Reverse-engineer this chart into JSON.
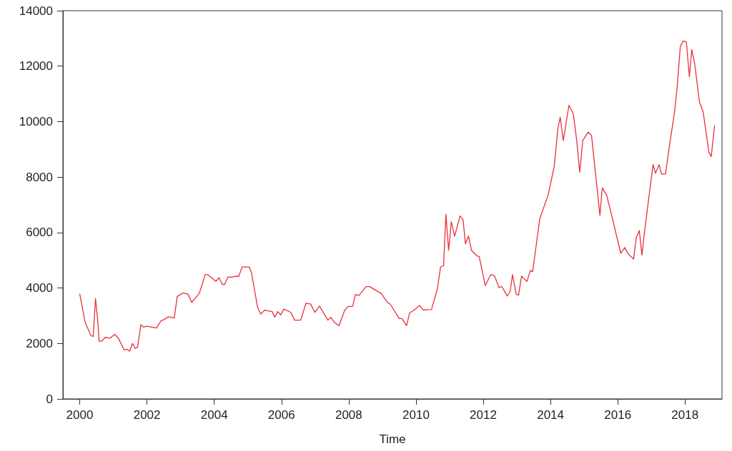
{
  "chart_data": {
    "type": "line",
    "xlabel": "Time",
    "x": [
      2000.0,
      2000.16,
      2000.33,
      2000.4,
      2000.47,
      2000.53,
      2000.58,
      2000.65,
      2000.76,
      2000.9,
      2001.04,
      2001.15,
      2001.32,
      2001.41,
      2001.48,
      2001.57,
      2001.65,
      2001.72,
      2001.82,
      2001.89,
      2002.0,
      2002.28,
      2002.42,
      2002.51,
      2002.63,
      2002.81,
      2002.9,
      2003.06,
      2003.22,
      2003.33,
      2003.45,
      2003.56,
      2003.73,
      2003.81,
      2004.05,
      2004.14,
      2004.24,
      2004.31,
      2004.41,
      2004.52,
      2004.63,
      2004.73,
      2004.83,
      2005.04,
      2005.11,
      2005.29,
      2005.38,
      2005.5,
      2005.72,
      2005.8,
      2005.89,
      2005.98,
      2006.07,
      2006.28,
      2006.39,
      2006.57,
      2006.73,
      2006.87,
      2006.99,
      2007.13,
      2007.38,
      2007.47,
      2007.56,
      2007.71,
      2007.88,
      2007.98,
      2008.12,
      2008.2,
      2008.3,
      2008.52,
      2008.62,
      2008.97,
      2009.15,
      2009.24,
      2009.5,
      2009.58,
      2009.72,
      2009.81,
      2009.93,
      2010.11,
      2010.21,
      2010.46,
      2010.64,
      2010.73,
      2010.82,
      2010.89,
      2010.97,
      2011.05,
      2011.15,
      2011.31,
      2011.4,
      2011.47,
      2011.56,
      2011.65,
      2011.81,
      2011.88,
      2012.06,
      2012.23,
      2012.34,
      2012.47,
      2012.55,
      2012.71,
      2012.8,
      2012.87,
      2012.98,
      2013.05,
      2013.14,
      2013.3,
      2013.4,
      2013.47,
      2013.68,
      2013.83,
      2013.93,
      2014.11,
      2014.22,
      2014.29,
      2014.38,
      2014.55,
      2014.68,
      2014.78,
      2014.87,
      2014.96,
      2015.12,
      2015.22,
      2015.47,
      2015.54,
      2015.67,
      2015.81,
      2016.09,
      2016.21,
      2016.3,
      2016.47,
      2016.55,
      2016.64,
      2016.72,
      2016.8,
      2017.05,
      2017.12,
      2017.23,
      2017.3,
      2017.42,
      2017.55,
      2017.69,
      2017.77,
      2017.86,
      2017.95,
      2018.04,
      2018.13,
      2018.2,
      2018.29,
      2018.43,
      2018.54,
      2018.71,
      2018.78,
      2018.88
    ],
    "series": [
      {
        "color": "#e8303a",
        "values": [
          3790,
          2760,
          2290,
          2250,
          3620,
          2890,
          2080,
          2080,
          2220,
          2190,
          2330,
          2190,
          1770,
          1790,
          1720,
          2000,
          1820,
          1870,
          2680,
          2590,
          2620,
          2560,
          2820,
          2860,
          2960,
          2920,
          3690,
          3820,
          3780,
          3480,
          3650,
          3820,
          4480,
          4480,
          4240,
          4370,
          4130,
          4130,
          4400,
          4390,
          4420,
          4420,
          4760,
          4760,
          4540,
          3300,
          3060,
          3200,
          3150,
          2950,
          3150,
          3030,
          3240,
          3120,
          2840,
          2840,
          3450,
          3420,
          3120,
          3350,
          2840,
          2940,
          2780,
          2640,
          3200,
          3330,
          3340,
          3770,
          3730,
          4050,
          4050,
          3800,
          3480,
          3410,
          2900,
          2900,
          2640,
          3100,
          3190,
          3370,
          3210,
          3220,
          3990,
          4760,
          4800,
          6660,
          5360,
          6390,
          5870,
          6600,
          6470,
          5600,
          5870,
          5360,
          5160,
          5130,
          4090,
          4490,
          4430,
          4010,
          4060,
          3710,
          3880,
          4480,
          3770,
          3750,
          4430,
          4230,
          4630,
          4590,
          6490,
          7010,
          7350,
          8380,
          9750,
          10160,
          9320,
          10590,
          10270,
          9320,
          8170,
          9320,
          9620,
          9500,
          6620,
          7610,
          7350,
          6660,
          5250,
          5460,
          5250,
          5040,
          5810,
          6070,
          5190,
          6070,
          8450,
          8140,
          8450,
          8110,
          8110,
          9230,
          10350,
          11300,
          12710,
          12910,
          12880,
          11620,
          12600,
          12070,
          10700,
          10350,
          8900,
          8740,
          9860
        ]
      }
    ],
    "xlim": [
      1999.5,
      2019.1
    ],
    "xticks": [
      2000,
      2002,
      2004,
      2006,
      2008,
      2010,
      2012,
      2014,
      2016,
      2018
    ],
    "ylim": [
      0,
      14000
    ],
    "yticks": [
      0,
      2000,
      4000,
      6000,
      8000,
      10000,
      12000,
      14000
    ],
    "grid": false,
    "marker": "none",
    "line_style": "solid"
  }
}
